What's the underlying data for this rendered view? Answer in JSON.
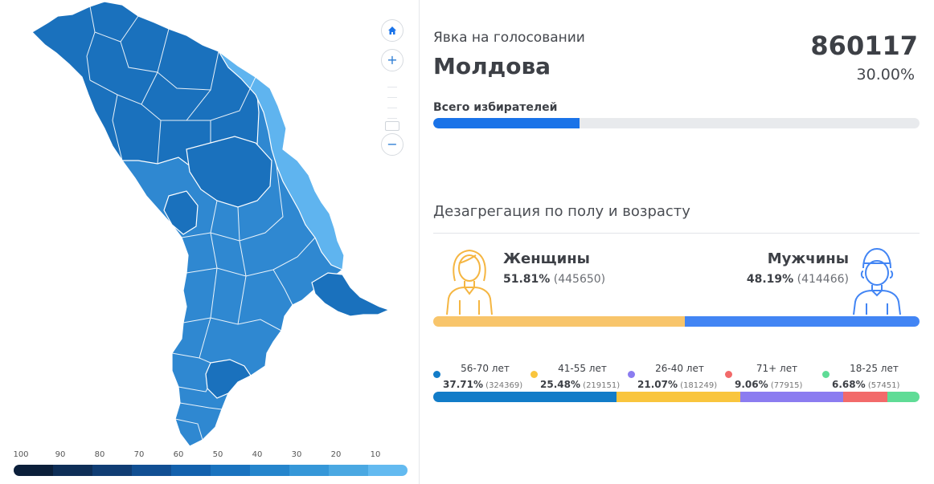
{
  "map": {
    "name": "Молдова",
    "legend_labels": [
      "100",
      "90",
      "80",
      "70",
      "60",
      "50",
      "40",
      "30",
      "20",
      "10"
    ],
    "legend_colors": [
      "#0b1f3a",
      "#0e2e57",
      "#103d74",
      "#114f93",
      "#1361ad",
      "#1a73bf",
      "#2585cc",
      "#3597d8",
      "#4aa8e2",
      "#63baf0"
    ],
    "region_fill": "#2f88d1",
    "region_fill_dark": "#1a71bd",
    "region_fill_light": "#5fb4ef"
  },
  "controls": {
    "home_icon": "home-icon",
    "zoom_in_label": "+",
    "zoom_out_label": "−"
  },
  "turnout": {
    "subtitle": "Явка на голосовании",
    "country": "Молдова",
    "total": "860117",
    "percent_label": "30.00%",
    "voters_label": "Всего избирателей",
    "progress": 0.3
  },
  "disaggregation": {
    "title": "Дезагрегация по полу и возрасту",
    "female": {
      "label": "Женщины",
      "percent": "51.81%",
      "count": "(445650)",
      "share": 0.5181,
      "color": "#f8c56b"
    },
    "male": {
      "label": "Мужчины",
      "percent": "48.19%",
      "count": "(414466)",
      "share": 0.4819,
      "color": "#4285f4"
    }
  },
  "age_groups": [
    {
      "name": "56-70 лет",
      "percent": "37.71%",
      "count": "(324369)",
      "share": 0.3771,
      "color": "#127cc8"
    },
    {
      "name": "41-55 лет",
      "percent": "25.48%",
      "count": "(219151)",
      "share": 0.2548,
      "color": "#f9c53d"
    },
    {
      "name": "26-40 лет",
      "percent": "21.07%",
      "count": "(181249)",
      "share": 0.2107,
      "color": "#8b7cf0"
    },
    {
      "name": "71+ лет",
      "percent": "9.06%",
      "count": "(77915)",
      "share": 0.0906,
      "color": "#f26a6a"
    },
    {
      "name": "18-25 лет",
      "percent": "6.68%",
      "count": "(57451)",
      "share": 0.0668,
      "color": "#5fdc96"
    }
  ]
}
